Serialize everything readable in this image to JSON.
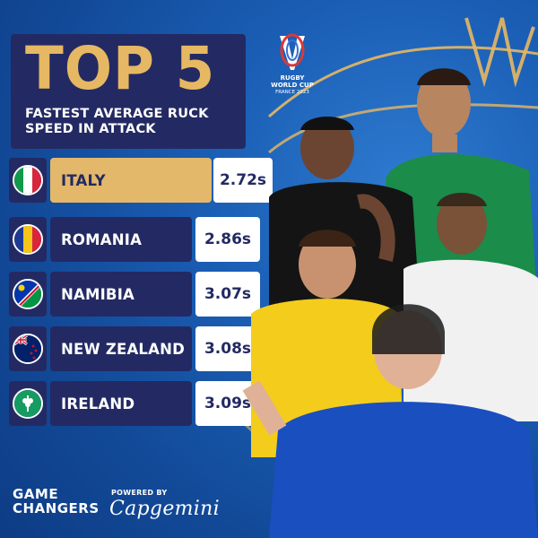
{
  "title": {
    "main": "TOP 5",
    "subtitle": "FASTEST AVERAGE RUCK SPEED IN ATTACK"
  },
  "logo": {
    "line1": "RUGBY",
    "line2": "WORLD CUP",
    "line3": "FRANCE 2023",
    "icon": "rugby-world-cup-logo-icon"
  },
  "rankings": [
    {
      "team": "ITALY",
      "time": "2.72s",
      "flag": "italy-flag-icon"
    },
    {
      "team": "ROMANIA",
      "time": "2.86s",
      "flag": "romania-flag-icon"
    },
    {
      "team": "NAMIBIA",
      "time": "3.07s",
      "flag": "namibia-flag-icon"
    },
    {
      "team": "NEW ZEALAND",
      "time": "3.08s",
      "flag": "new-zealand-flag-icon"
    },
    {
      "team": "IRELAND",
      "time": "3.09s",
      "flag": "ireland-flag-icon"
    }
  ],
  "footer": {
    "series_line1": "GAME",
    "series_line2": "CHANGERS",
    "powered_by": "POWERED BY",
    "sponsor": "Capgemini"
  },
  "colors": {
    "navy": "#232a63",
    "gold": "#e3b86a",
    "background": "#1b5fb6",
    "white": "#ffffff"
  }
}
